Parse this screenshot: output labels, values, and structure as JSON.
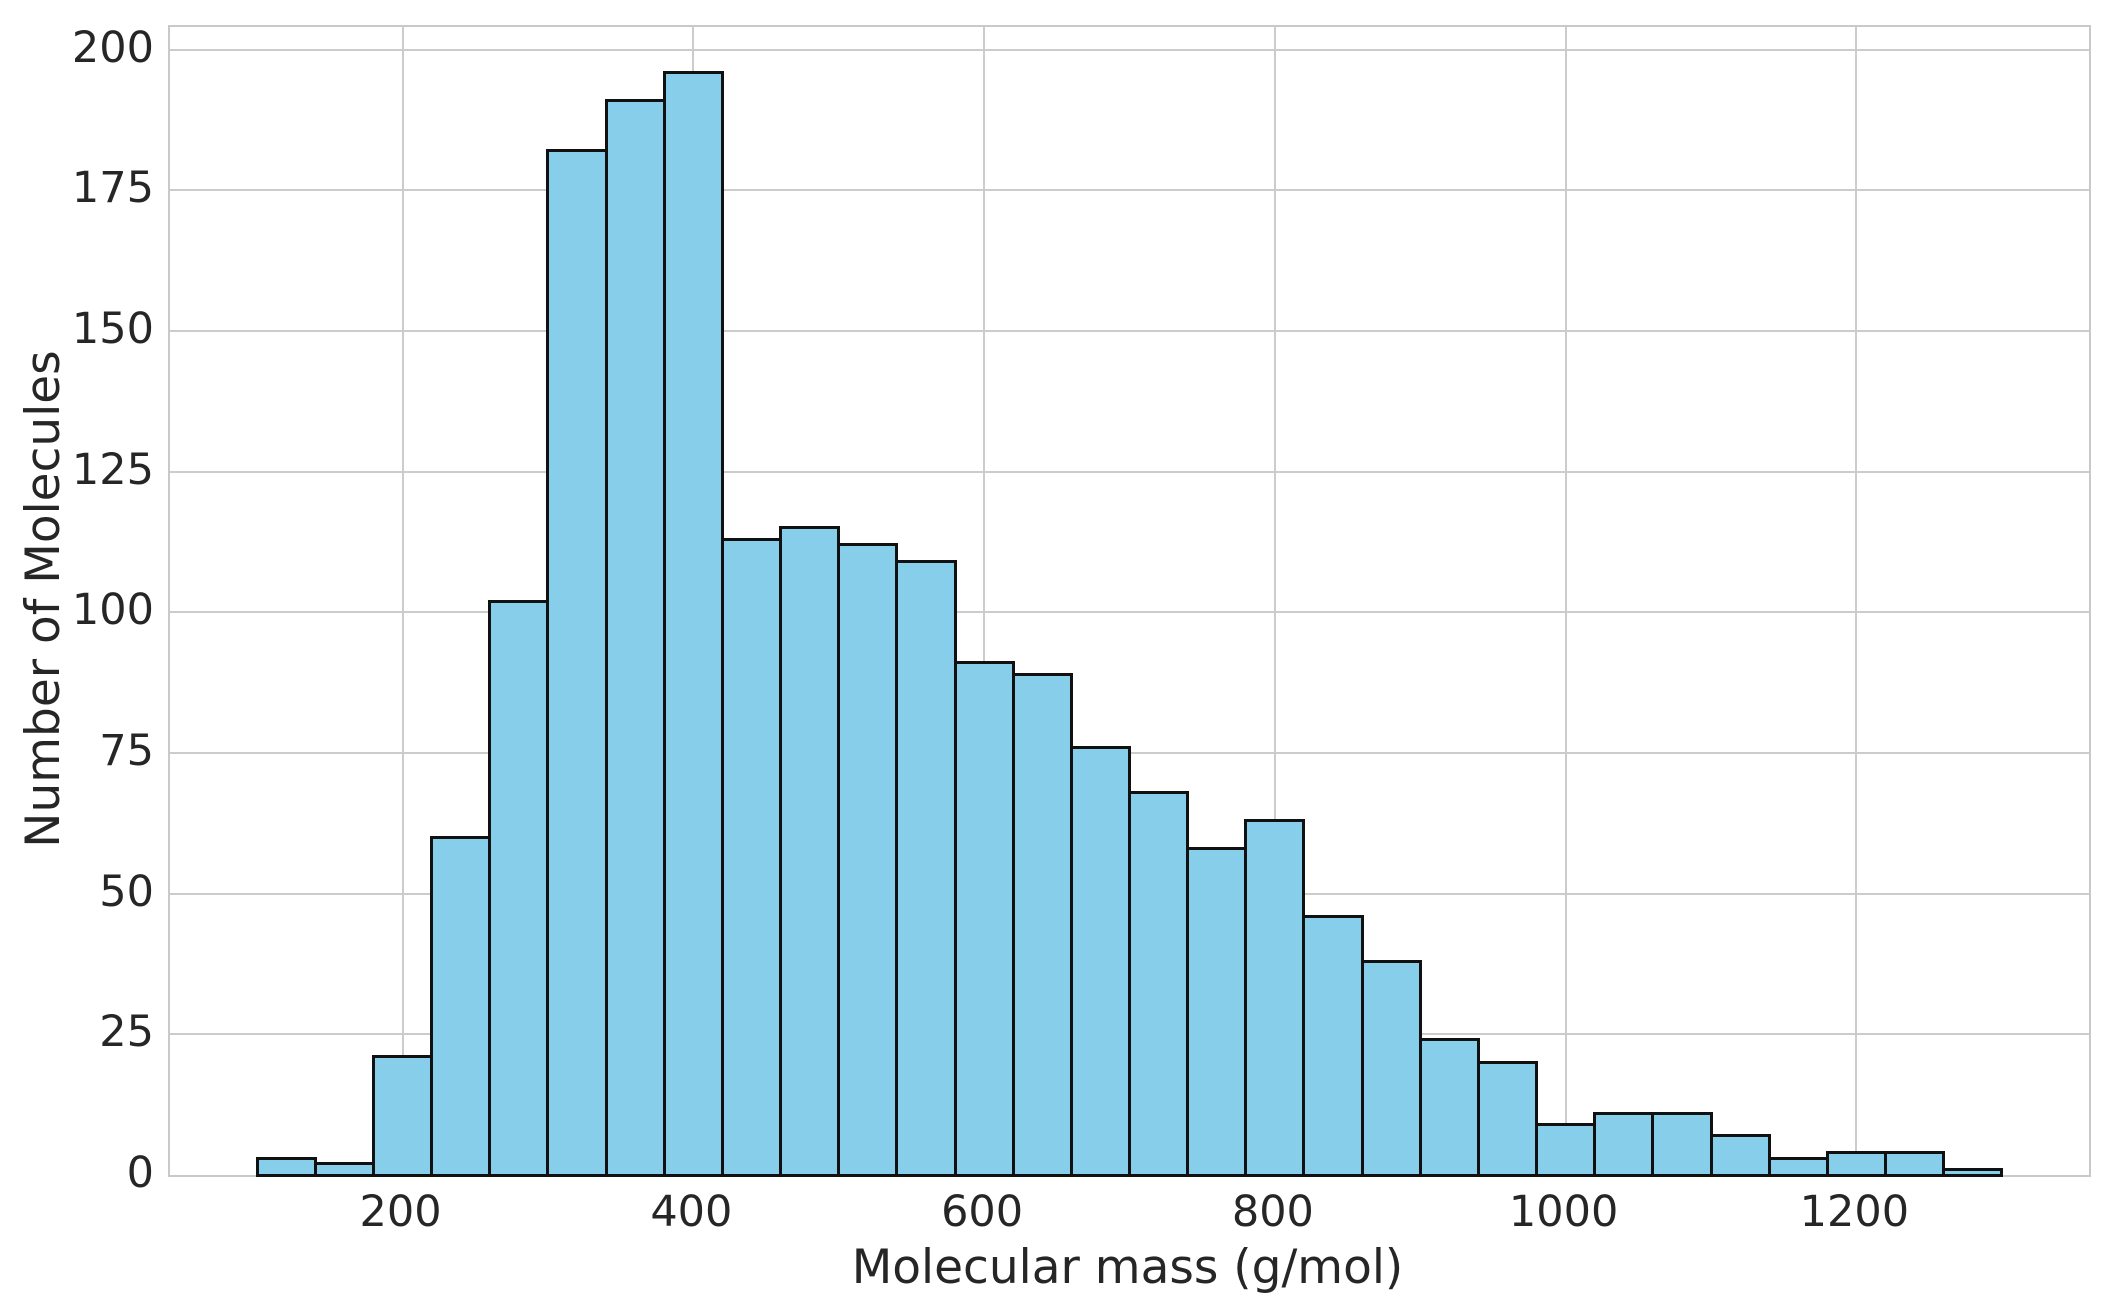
{
  "figure": {
    "background": "#ffffff"
  },
  "chart_data": {
    "type": "bar",
    "subtype": "histogram",
    "title": "",
    "xlabel": "Molecular mass (g/mol)",
    "ylabel": "Number of Molecules",
    "bin_edges": [
      100,
      140,
      180,
      220,
      260,
      300,
      340,
      380,
      420,
      460,
      500,
      540,
      580,
      620,
      660,
      700,
      740,
      780,
      820,
      860,
      900,
      940,
      980,
      1020,
      1060,
      1100,
      1140,
      1180,
      1220,
      1260,
      1300
    ],
    "counts": [
      3,
      2,
      21,
      60,
      102,
      182,
      191,
      196,
      113,
      115,
      112,
      109,
      91,
      89,
      76,
      68,
      58,
      63,
      46,
      38,
      24,
      20,
      9,
      11,
      11,
      7,
      3,
      4,
      4,
      1
    ],
    "x_ticks": [
      200,
      400,
      600,
      800,
      1000,
      1200
    ],
    "y_ticks": [
      0,
      25,
      50,
      75,
      100,
      125,
      150,
      175,
      200
    ],
    "xlim": [
      40,
      1360
    ],
    "ylim": [
      0,
      204
    ],
    "grid": true,
    "legend_position": "none",
    "colors": {
      "bar_fill": "#87CEEB",
      "bar_edge": "#111111",
      "grid": "#cccccc",
      "spine": "#c9c9c9",
      "text": "#262626",
      "background": "#ffffff"
    }
  }
}
